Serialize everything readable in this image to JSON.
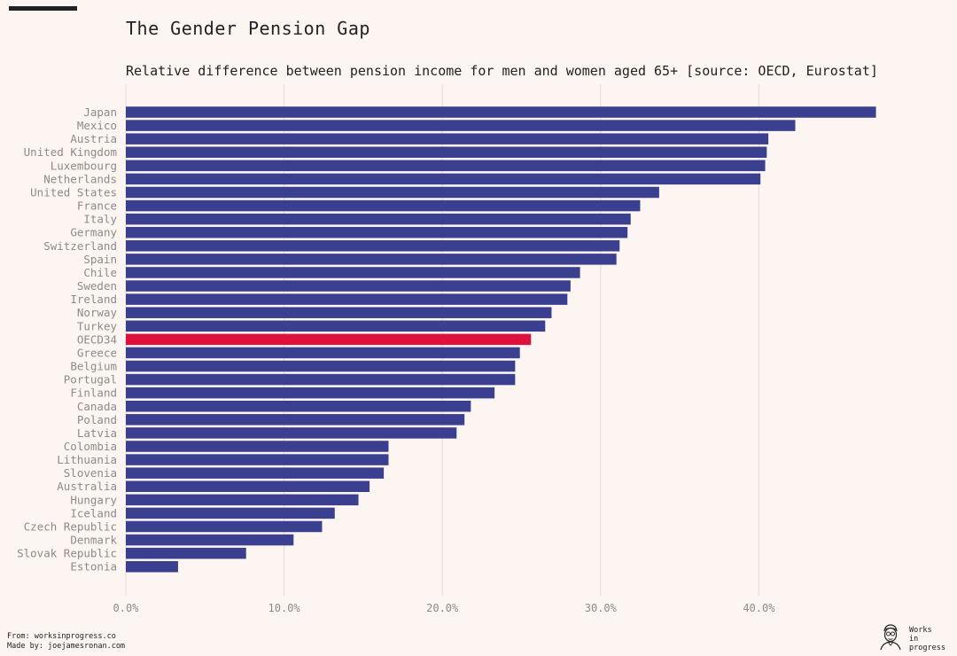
{
  "title": "The Gender Pension Gap",
  "subtitle": "Relative difference between pension income for men and women aged 65+ [source: OECD, Eurostat]",
  "footer": {
    "from": "From: worksinprogress.co",
    "made_by": "Made by: joejamesronan.com"
  },
  "logo": {
    "line1": "Works",
    "line2": "in",
    "line3": "progress",
    "icon": "portrait-sketch-icon"
  },
  "colors": {
    "bar": "#3a3f8f",
    "highlight": "#e0103e",
    "background": "#fdf5f2",
    "grid": "#e2dcd9",
    "tick_text": "#8f8a88"
  },
  "chart_data": {
    "type": "bar",
    "orientation": "horizontal",
    "categories": [
      "Japan",
      "Mexico",
      "Austria",
      "United Kingdom",
      "Luxembourg",
      "Netherlands",
      "United States",
      "France",
      "Italy",
      "Germany",
      "Switzerland",
      "Spain",
      "Chile",
      "Sweden",
      "Ireland",
      "Norway",
      "Turkey",
      "OECD34",
      "Greece",
      "Belgium",
      "Portugal",
      "Finland",
      "Canada",
      "Poland",
      "Latvia",
      "Colombia",
      "Lithuania",
      "Slovenia",
      "Australia",
      "Hungary",
      "Iceland",
      "Czech Republic",
      "Denmark",
      "Slovak Republic",
      "Estonia"
    ],
    "values": [
      47.4,
      42.3,
      40.6,
      40.5,
      40.4,
      40.1,
      33.7,
      32.5,
      31.9,
      31.7,
      31.2,
      31.0,
      28.7,
      28.1,
      27.9,
      26.9,
      26.5,
      25.6,
      24.9,
      24.6,
      24.6,
      23.3,
      21.8,
      21.4,
      20.9,
      16.6,
      16.6,
      16.3,
      15.4,
      14.7,
      13.2,
      12.4,
      10.6,
      7.6,
      3.3
    ],
    "highlight": [
      "OECD34"
    ],
    "xlim": [
      0,
      50
    ],
    "xticks": [
      0,
      10,
      20,
      30,
      40
    ],
    "xtick_labels": [
      "0.0%",
      "10.0%",
      "20.0%",
      "30.0%",
      "40.0%"
    ],
    "grid": true,
    "legend": false
  }
}
